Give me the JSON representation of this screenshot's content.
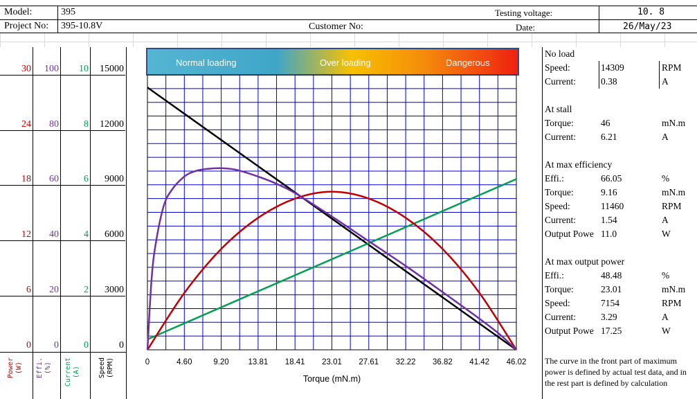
{
  "header": {
    "model_label": "Model:",
    "model_value": "395",
    "project_label": "Project No:",
    "project_value": "395-10.8V",
    "customer_label": "Customer No:",
    "voltage_label": "Testing voltage:",
    "voltage_value": "10. 8",
    "date_label": "Date:",
    "date_value": "26/May/23"
  },
  "banner": {
    "normal": "Normal loading",
    "over": "Over loading",
    "danger": "Dangerous"
  },
  "axes": {
    "power_ticks": [
      "30",
      "24",
      "18",
      "12",
      "6",
      "0"
    ],
    "effi_ticks": [
      "100",
      "80",
      "60",
      "40",
      "20",
      "0"
    ],
    "current_ticks": [
      "10",
      "8",
      "6",
      "4",
      "2",
      "0"
    ],
    "speed_ticks": [
      "15000",
      "12000",
      "9000",
      "6000",
      "3000",
      "0"
    ],
    "power_name": "Power\n(W)",
    "effi_name": "Effi.\n(%)",
    "current_name": "Current\n(A)",
    "speed_name": "Speed\n(RPM)",
    "colors": {
      "power": "#c00000",
      "effi": "#7030a0",
      "current": "#00a050",
      "speed": "#000000"
    }
  },
  "chart_data": {
    "type": "line",
    "xlabel": "Torque (mN.m)",
    "x_ticks": [
      "0",
      "4.60",
      "9.20",
      "13.81",
      "18.41",
      "23.01",
      "27.61",
      "32.22",
      "36.82",
      "41.42",
      "46.02"
    ],
    "xlim": [
      0,
      46.02
    ],
    "series": [
      {
        "name": "Speed",
        "unit": "RPM",
        "color": "#000000",
        "ylim": [
          0,
          15000
        ],
        "x": [
          0,
          46.02
        ],
        "y": [
          14309,
          0
        ]
      },
      {
        "name": "Current",
        "unit": "A",
        "color": "#00a050",
        "ylim": [
          0,
          10
        ],
        "x": [
          0,
          46.02
        ],
        "y": [
          0.38,
          6.21
        ]
      },
      {
        "name": "Power",
        "unit": "W",
        "color": "#c00000",
        "ylim": [
          0,
          30
        ],
        "x": [
          0,
          4.6,
          9.2,
          13.81,
          18.41,
          23.01,
          27.61,
          32.22,
          36.82,
          41.42,
          46.02
        ],
        "y": [
          0,
          6.2,
          11.0,
          14.4,
          16.5,
          17.25,
          16.5,
          14.4,
          11.0,
          6.2,
          0
        ]
      },
      {
        "name": "Efficiency",
        "unit": "%",
        "color": "#7030a0",
        "ylim": [
          0,
          100
        ],
        "x": [
          0,
          0.5,
          1,
          2,
          3,
          4.6,
          6,
          7.5,
          9.16,
          11,
          13.81,
          16,
          18.41,
          23.01,
          27.61,
          32.22,
          36.82,
          41.42,
          44,
          46.02
        ],
        "y": [
          0,
          25,
          38,
          52,
          58,
          63,
          65,
          65.8,
          66.05,
          65.5,
          63,
          60.5,
          57,
          48.48,
          39.5,
          30.5,
          21,
          11.3,
          5.5,
          0
        ]
      }
    ]
  },
  "panel": {
    "noload": {
      "title": "No load",
      "speed_label": "Speed:",
      "speed_value": "14309",
      "speed_unit": "RPM",
      "current_label": "Current:",
      "current_value": "0.38",
      "current_unit": "A"
    },
    "stall": {
      "title": "At stall",
      "torque_label": "Torque:",
      "torque_value": "46",
      "torque_unit": "mN.m",
      "current_label": "Current:",
      "current_value": "6.21",
      "current_unit": "A"
    },
    "maxeff": {
      "title": "At max efficiency",
      "effi_label": "Effi.:",
      "effi_value": "66.05",
      "effi_unit": "%",
      "torque_label": "Torque:",
      "torque_value": "9.16",
      "torque_unit": "mN.m",
      "speed_label": "Speed:",
      "speed_value": "11460",
      "speed_unit": "RPM",
      "current_label": "Current:",
      "current_value": "1.54",
      "current_unit": "A",
      "power_label": "Output Powe",
      "power_value": "11.0",
      "power_unit": "W"
    },
    "maxpow": {
      "title": "At max output power",
      "effi_label": "Effi.:",
      "effi_value": "48.48",
      "effi_unit": "%",
      "torque_label": "Torque:",
      "torque_value": "23.01",
      "torque_unit": "mN.m",
      "speed_label": "Speed:",
      "speed_value": "7154",
      "speed_unit": "RPM",
      "current_label": "Current:",
      "current_value": "3.29",
      "current_unit": "A",
      "power_label": "Output Powe",
      "power_value": "17.25",
      "power_unit": "W"
    },
    "note": "The curve in the front part of maximum power is defined by actual test data, and in the rest part is defined by calculation"
  }
}
